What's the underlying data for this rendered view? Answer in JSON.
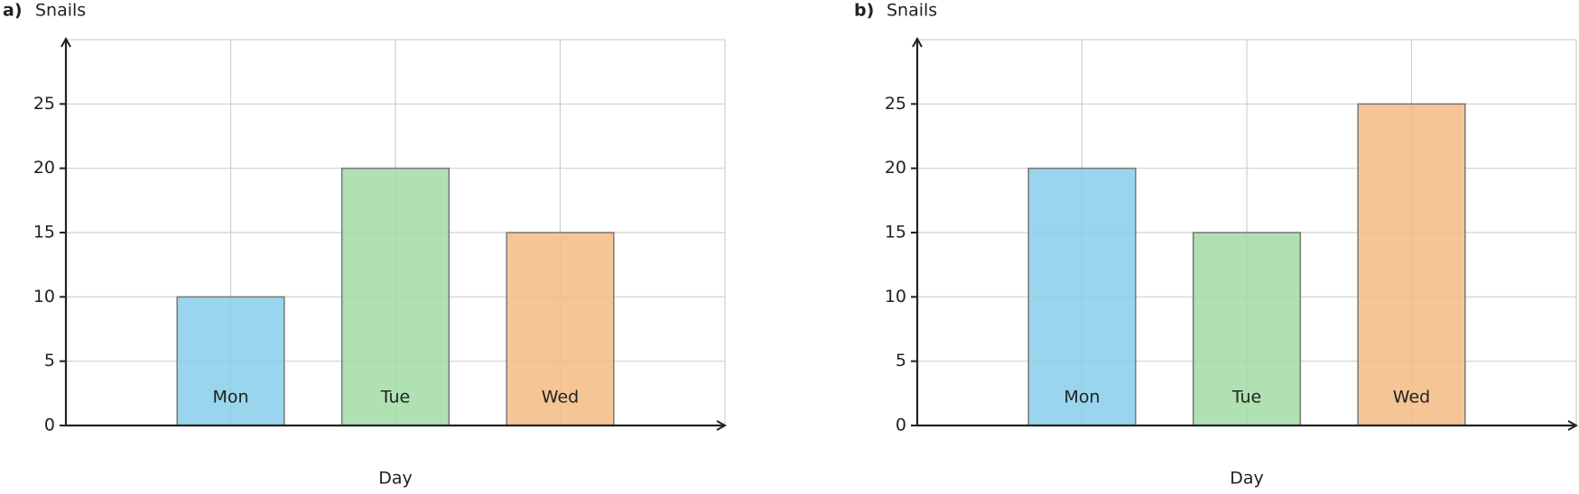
{
  "chart_data": [
    {
      "type": "bar",
      "panel": "a)",
      "title": "Snails",
      "xlabel": "Day",
      "categories": [
        "Mon",
        "Tue",
        "Wed"
      ],
      "values": [
        10,
        20,
        15
      ],
      "colors": [
        "#87cee9",
        "#a1dca4",
        "#f3bb82"
      ],
      "ylim": [
        0,
        30
      ],
      "yticks": [
        0,
        5,
        10,
        15,
        20,
        25
      ],
      "grid": true
    },
    {
      "type": "bar",
      "panel": "b)",
      "title": "Snails",
      "xlabel": "Day",
      "categories": [
        "Mon",
        "Tue",
        "Wed"
      ],
      "values": [
        20,
        15,
        25
      ],
      "colors": [
        "#87cee9",
        "#a1dca4",
        "#f3bb82"
      ],
      "ylim": [
        0,
        30
      ],
      "yticks": [
        0,
        5,
        10,
        15,
        20,
        25
      ],
      "grid": true
    }
  ]
}
